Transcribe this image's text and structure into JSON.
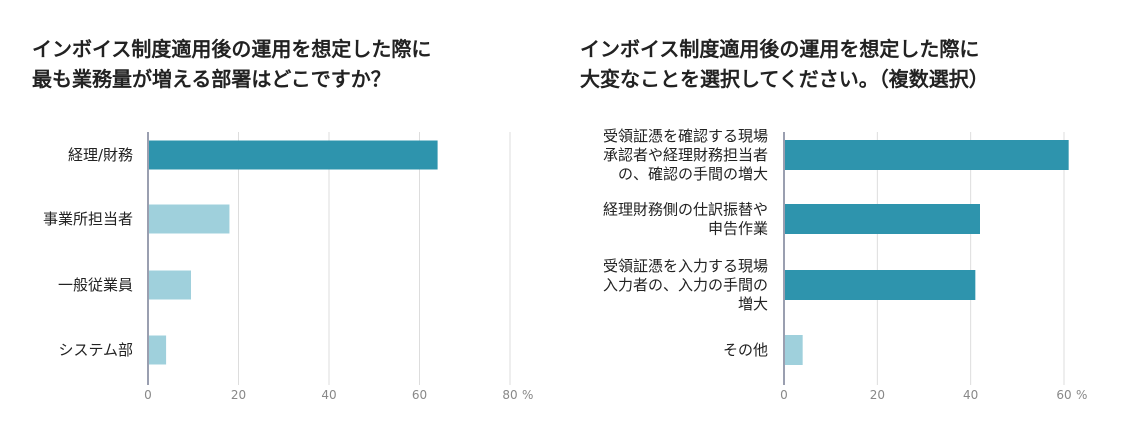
{
  "colors": {
    "dark": "#2e94ad",
    "light": "#9fd0dc",
    "grid": "#dddddd",
    "axis": "#9a9fb0"
  },
  "chart_data": [
    {
      "type": "bar",
      "orientation": "horizontal",
      "title_lines": [
        "インボイス制度適用後の運用を想定した際に",
        "最も業務量が増える部署はどこですか？"
      ],
      "categories": [
        [
          "経理/財務"
        ],
        [
          "事業所担当者"
        ],
        [
          "一般従業員"
        ],
        [
          "システム部"
        ]
      ],
      "values": [
        64,
        18,
        9.5,
        4
      ],
      "highlight": [
        true,
        false,
        false,
        false
      ],
      "xlim": [
        0,
        80
      ],
      "xticks": [
        "0",
        "20",
        "40",
        "60",
        "80"
      ],
      "unit": "%",
      "grid": true
    },
    {
      "type": "bar",
      "orientation": "horizontal",
      "title_lines": [
        "インボイス制度適用後の運用を想定した際に",
        "大変なことを選択してください。（複数選択）"
      ],
      "categories": [
        [
          "受領証憑を確認する現場",
          "承認者や経理財務担当者",
          "の、確認の手間の増大"
        ],
        [
          "経理財務側の仕訳振替や",
          "申告作業"
        ],
        [
          "受領証憑を入力する現場",
          "入力者の、入力の手間の",
          "増大"
        ],
        [
          "その他"
        ]
      ],
      "values": [
        61,
        42,
        41,
        4
      ],
      "highlight": [
        true,
        true,
        true,
        false
      ],
      "xlim": [
        0,
        60
      ],
      "xticks": [
        "0",
        "20",
        "40",
        "60"
      ],
      "unit": "%",
      "grid": true
    }
  ]
}
